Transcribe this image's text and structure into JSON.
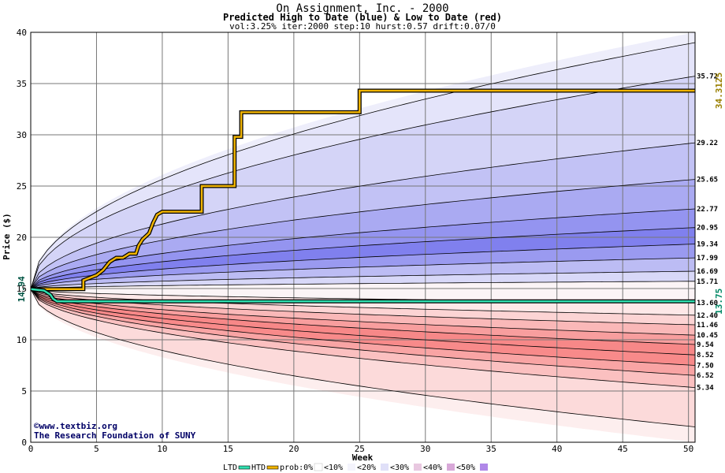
{
  "chart_data": {
    "type": "area",
    "title": "On Assignment, Inc. - 2000",
    "subtitle": "Predicted High to Date (blue) &  Low to Date (red)",
    "params": "vol:3.25% iter:2000 step:10 hurst:0.57 drift:0.07/0",
    "xlabel": "Week",
    "ylabel": "Price ($)",
    "xlim": [
      0,
      50.5
    ],
    "ylim": [
      0,
      40
    ],
    "x_ticks": [
      0,
      5,
      10,
      15,
      20,
      25,
      30,
      35,
      40,
      45,
      50
    ],
    "y_ticks": [
      0,
      5,
      10,
      15,
      20,
      25,
      30,
      35,
      40
    ],
    "grid": true,
    "start_price": 14.94,
    "start_price_label": "14.94",
    "high_to_date_label": "34.3125",
    "low_to_date_label": "13.75",
    "right_labels": [
      "35.72",
      "29.22",
      "25.65",
      "22.77",
      "20.95",
      "19.34",
      "17.99",
      "16.69",
      "15.71",
      "13.60",
      "12.40",
      "11.46",
      "10.45",
      "9.54",
      "8.52",
      "7.50",
      "6.52",
      "5.34"
    ],
    "series": [
      {
        "name": "HTD",
        "x": [
          0,
          2,
          4,
          4,
          5,
          5.5,
          6,
          6.5,
          7,
          7.5,
          8,
          8.2,
          8.5,
          9,
          9.3,
          9.6,
          10,
          13,
          13,
          15.5,
          15.5,
          16,
          16,
          25,
          25,
          50.5
        ],
        "y": [
          14.94,
          14.94,
          14.94,
          15.8,
          16.3,
          16.8,
          17.6,
          18.0,
          18.0,
          18.4,
          18.4,
          19.2,
          19.8,
          20.4,
          21.4,
          22.2,
          22.5,
          22.5,
          25.0,
          25.0,
          29.8,
          29.8,
          32.2,
          32.2,
          34.31,
          34.31
        ]
      },
      {
        "name": "LTD",
        "x": [
          0,
          1,
          1.5,
          1.7,
          2,
          50.5
        ],
        "y": [
          14.94,
          14.8,
          14.4,
          14.0,
          13.75,
          13.75
        ]
      }
    ],
    "upper_curves_end": [
      39.0,
      35.72,
      29.22,
      25.65,
      22.77,
      20.95,
      19.34,
      17.99,
      16.69,
      15.71
    ],
    "lower_curves_end": [
      13.6,
      12.4,
      11.46,
      10.45,
      9.54,
      8.52,
      7.5,
      6.52,
      5.34,
      1.5
    ],
    "band_colors": {
      "upper": [
        "#eeeefb",
        "#e4e4fa",
        "#d4d4f7",
        "#c2c2f5",
        "#aaaaf2",
        "#9494f0",
        "#8080ee",
        "#9a9af0",
        "#bcbcf4",
        "#d8d8f8"
      ],
      "lower": [
        "#fde8e8",
        "#fcd4d4",
        "#fab8b8",
        "#f89e9e",
        "#f78888",
        "#f88a8a",
        "#f9a4a4",
        "#fbc0c0",
        "#fcdada",
        "#fdeeee"
      ]
    },
    "htd_color": "#f0b400",
    "ltd_color": "#30e0b0",
    "credit_lines": [
      "©www.textbiz.org",
      "The Research Foundation of SUNY"
    ],
    "legend": {
      "ltd": "LTD",
      "htd": "HTD",
      "prob": "prob:0%",
      "bins": [
        "<10%",
        "<20%",
        "<30%",
        "<40%",
        "<50%"
      ],
      "bin_colors": [
        "#f4f4fc",
        "#e0e0f8",
        "#e8c8e0",
        "#d8a8d8",
        "#b088e8"
      ]
    }
  }
}
